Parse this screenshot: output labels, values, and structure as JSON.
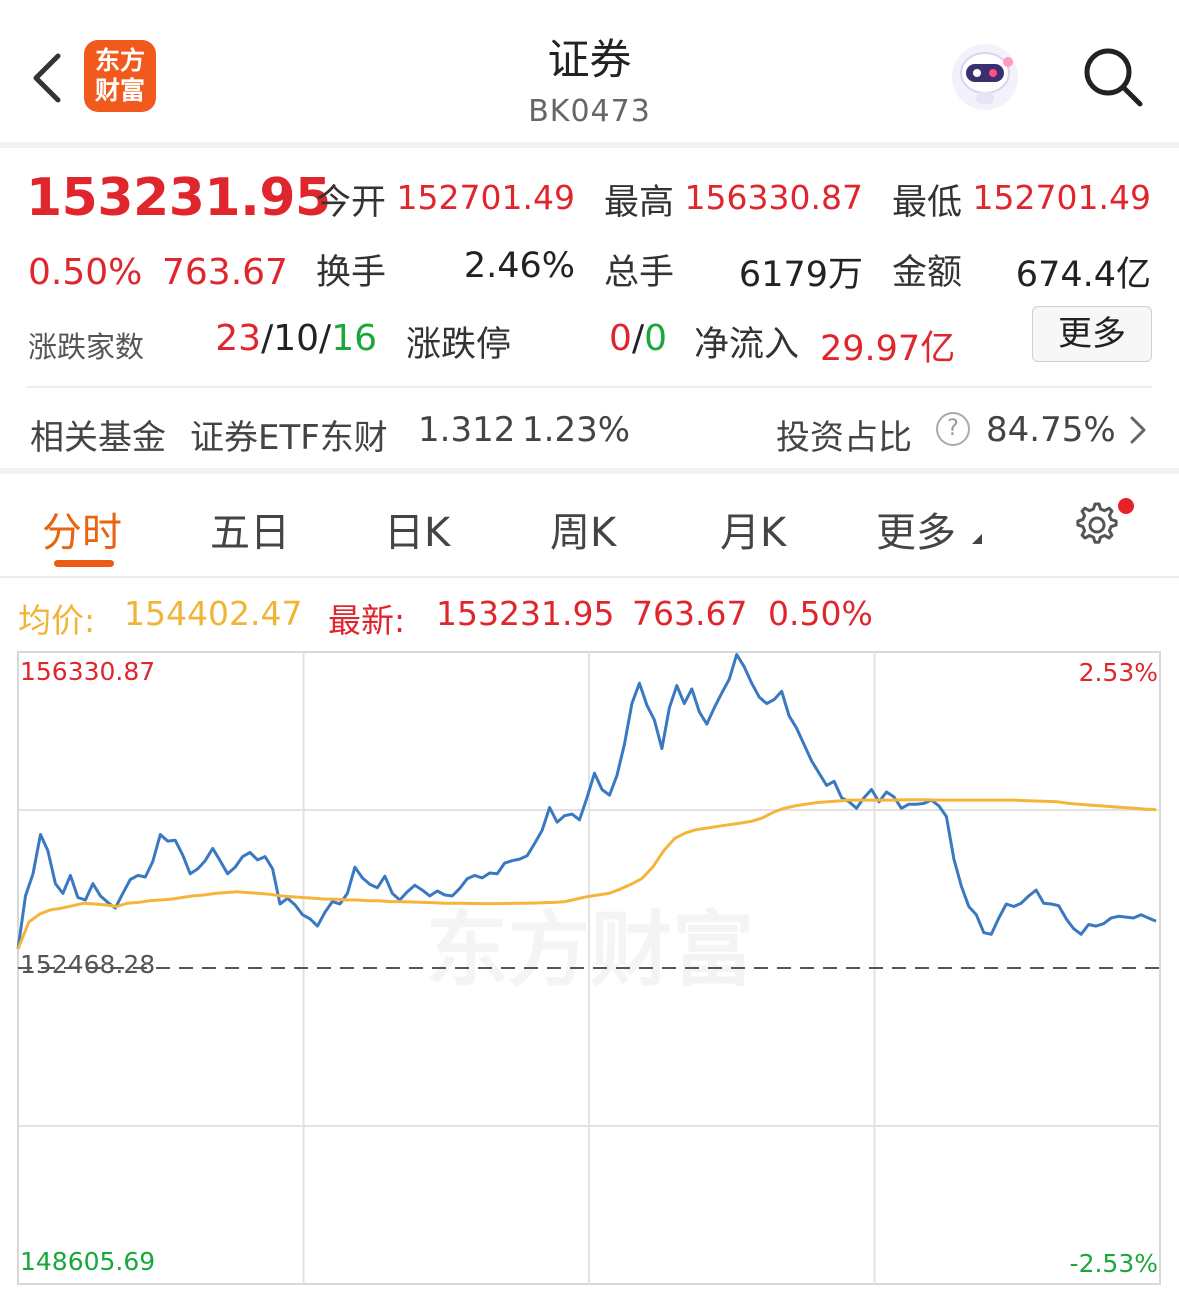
{
  "header": {
    "title": "证券",
    "code": "BK0473",
    "logo_line1": "东方",
    "logo_line2": "财富"
  },
  "quote": {
    "price": "153231.95",
    "change_pct": "0.50%",
    "change_val": "763.67",
    "open_label": "今开",
    "open": "152701.49",
    "high_label": "最高",
    "high": "156330.87",
    "low_label": "最低",
    "low": "152701.49",
    "turnover_label": "换手",
    "turnover": "2.46%",
    "volume_label": "总手",
    "volume": "6179万",
    "amount_label": "金额",
    "amount": "674.4亿",
    "breadth_label": "涨跌家数",
    "breadth_up": "23",
    "breadth_sep1": "/",
    "breadth_flat": "10",
    "breadth_sep2": "/",
    "breadth_down": "16",
    "limit_label": "涨跌停",
    "limit_up": "0",
    "limit_sep": "/",
    "limit_down": "0",
    "netflow_label": "净流入",
    "netflow": "29.97亿",
    "more_button": "更多"
  },
  "fund": {
    "label": "相关基金",
    "name": "证券ETF东财",
    "price": "1.312",
    "pct": "1.23%",
    "ratio_label": "投资占比",
    "help": "?",
    "ratio": "84.75%"
  },
  "tabs": [
    {
      "label": "分时",
      "active": true
    },
    {
      "label": "五日"
    },
    {
      "label": "日K"
    },
    {
      "label": "周K"
    },
    {
      "label": "月K"
    },
    {
      "label": "更多"
    }
  ],
  "legend": {
    "avg_label": "均价:",
    "avg": "154402.47",
    "latest_label": "最新:",
    "latest": "153231.95",
    "latest_chg": "763.67",
    "latest_pct": "0.50%"
  },
  "colors": {
    "up": "#e0262d",
    "down": "#1aa83a",
    "price_line": "#3a78c2",
    "avg_line": "#f4b53a",
    "accent": "#ea5c14"
  },
  "chart_data": {
    "type": "line",
    "y_max_label": "156330.87",
    "y_min_label": "148605.69",
    "prev_close_label": "152468.28",
    "pct_max_label": "2.53%",
    "pct_min_label": "-2.53%",
    "watermark": "东方财富",
    "ylim": [
      148605.69,
      156330.87
    ],
    "prev_close": 152468.28,
    "series": [
      {
        "values": [
          152700,
          153350,
          153620,
          154100,
          153900,
          153500,
          153380,
          153600,
          153330,
          153300,
          153500,
          153350,
          153270,
          153200,
          153380,
          153550,
          153600,
          153580,
          153770,
          154100,
          154020,
          154030,
          153850,
          153620,
          153680,
          153780,
          153930,
          153780,
          153620,
          153700,
          153830,
          153880,
          153790,
          153830,
          153680,
          153250,
          153320,
          153240,
          153120,
          153070,
          152980,
          153150,
          153280,
          153250,
          153380,
          153700,
          153570,
          153490,
          153450,
          153590,
          153380,
          153300,
          153400,
          153480,
          153420,
          153350,
          153410,
          153360,
          153350,
          153440,
          153560,
          153600,
          153570,
          153630,
          153620,
          153750,
          153780,
          153800,
          153840,
          153990,
          154150,
          154430,
          154250,
          154330,
          154350,
          154280,
          154550,
          154850,
          154650,
          154580,
          154820,
          155200,
          155700,
          155950,
          155680,
          155500,
          155150,
          155650,
          155920,
          155700,
          155880,
          155600,
          155450,
          155650,
          155830,
          156000,
          156300,
          156150,
          155950,
          155780,
          155700,
          155750,
          155850,
          155550,
          155400,
          155200,
          155000,
          154850,
          154700,
          154750,
          154550,
          154500,
          154420,
          154550,
          154650,
          154500,
          154620,
          154560,
          154420,
          154470,
          154470,
          154480,
          154520,
          154450,
          154320,
          153800,
          153470,
          153220,
          153120,
          152900,
          152880,
          153080,
          153250,
          153220,
          153260,
          153350,
          153420,
          153260,
          153250,
          153230,
          153070,
          152950,
          152880,
          153000,
          152980,
          153010,
          153080,
          153100,
          153090,
          153080,
          153120,
          153080,
          153040
        ],
        "color": "price_line"
      },
      {
        "values": [
          152700,
          153030,
          153130,
          153180,
          153200,
          153230,
          153260,
          153250,
          153240,
          153220,
          153260,
          153270,
          153290,
          153300,
          153310,
          153330,
          153350,
          153360,
          153380,
          153390,
          153400,
          153390,
          153380,
          153370,
          153350,
          153340,
          153330,
          153320,
          153310,
          153310,
          153300,
          153300,
          153290,
          153290,
          153280,
          153280,
          153275,
          153270,
          153265,
          153260,
          153260,
          153258,
          153255,
          153255,
          153255,
          153258,
          153260,
          153262,
          153265,
          153270,
          153280,
          153310,
          153340,
          153360,
          153380,
          153430,
          153490,
          153560,
          153700,
          153900,
          154050,
          154120,
          154160,
          154180,
          154200,
          154220,
          154240,
          154260,
          154300,
          154370,
          154420,
          154450,
          154470,
          154490,
          154500,
          154510,
          154520,
          154520,
          154520,
          154520,
          154520,
          154525,
          154525,
          154525,
          154520,
          154520,
          154520,
          154520,
          154520,
          154520,
          154520,
          154520,
          154515,
          154510,
          154505,
          154500,
          154480,
          154470,
          154460,
          154450,
          154440,
          154430,
          154420,
          154410,
          154405
        ],
        "color": "avg_line"
      }
    ]
  }
}
